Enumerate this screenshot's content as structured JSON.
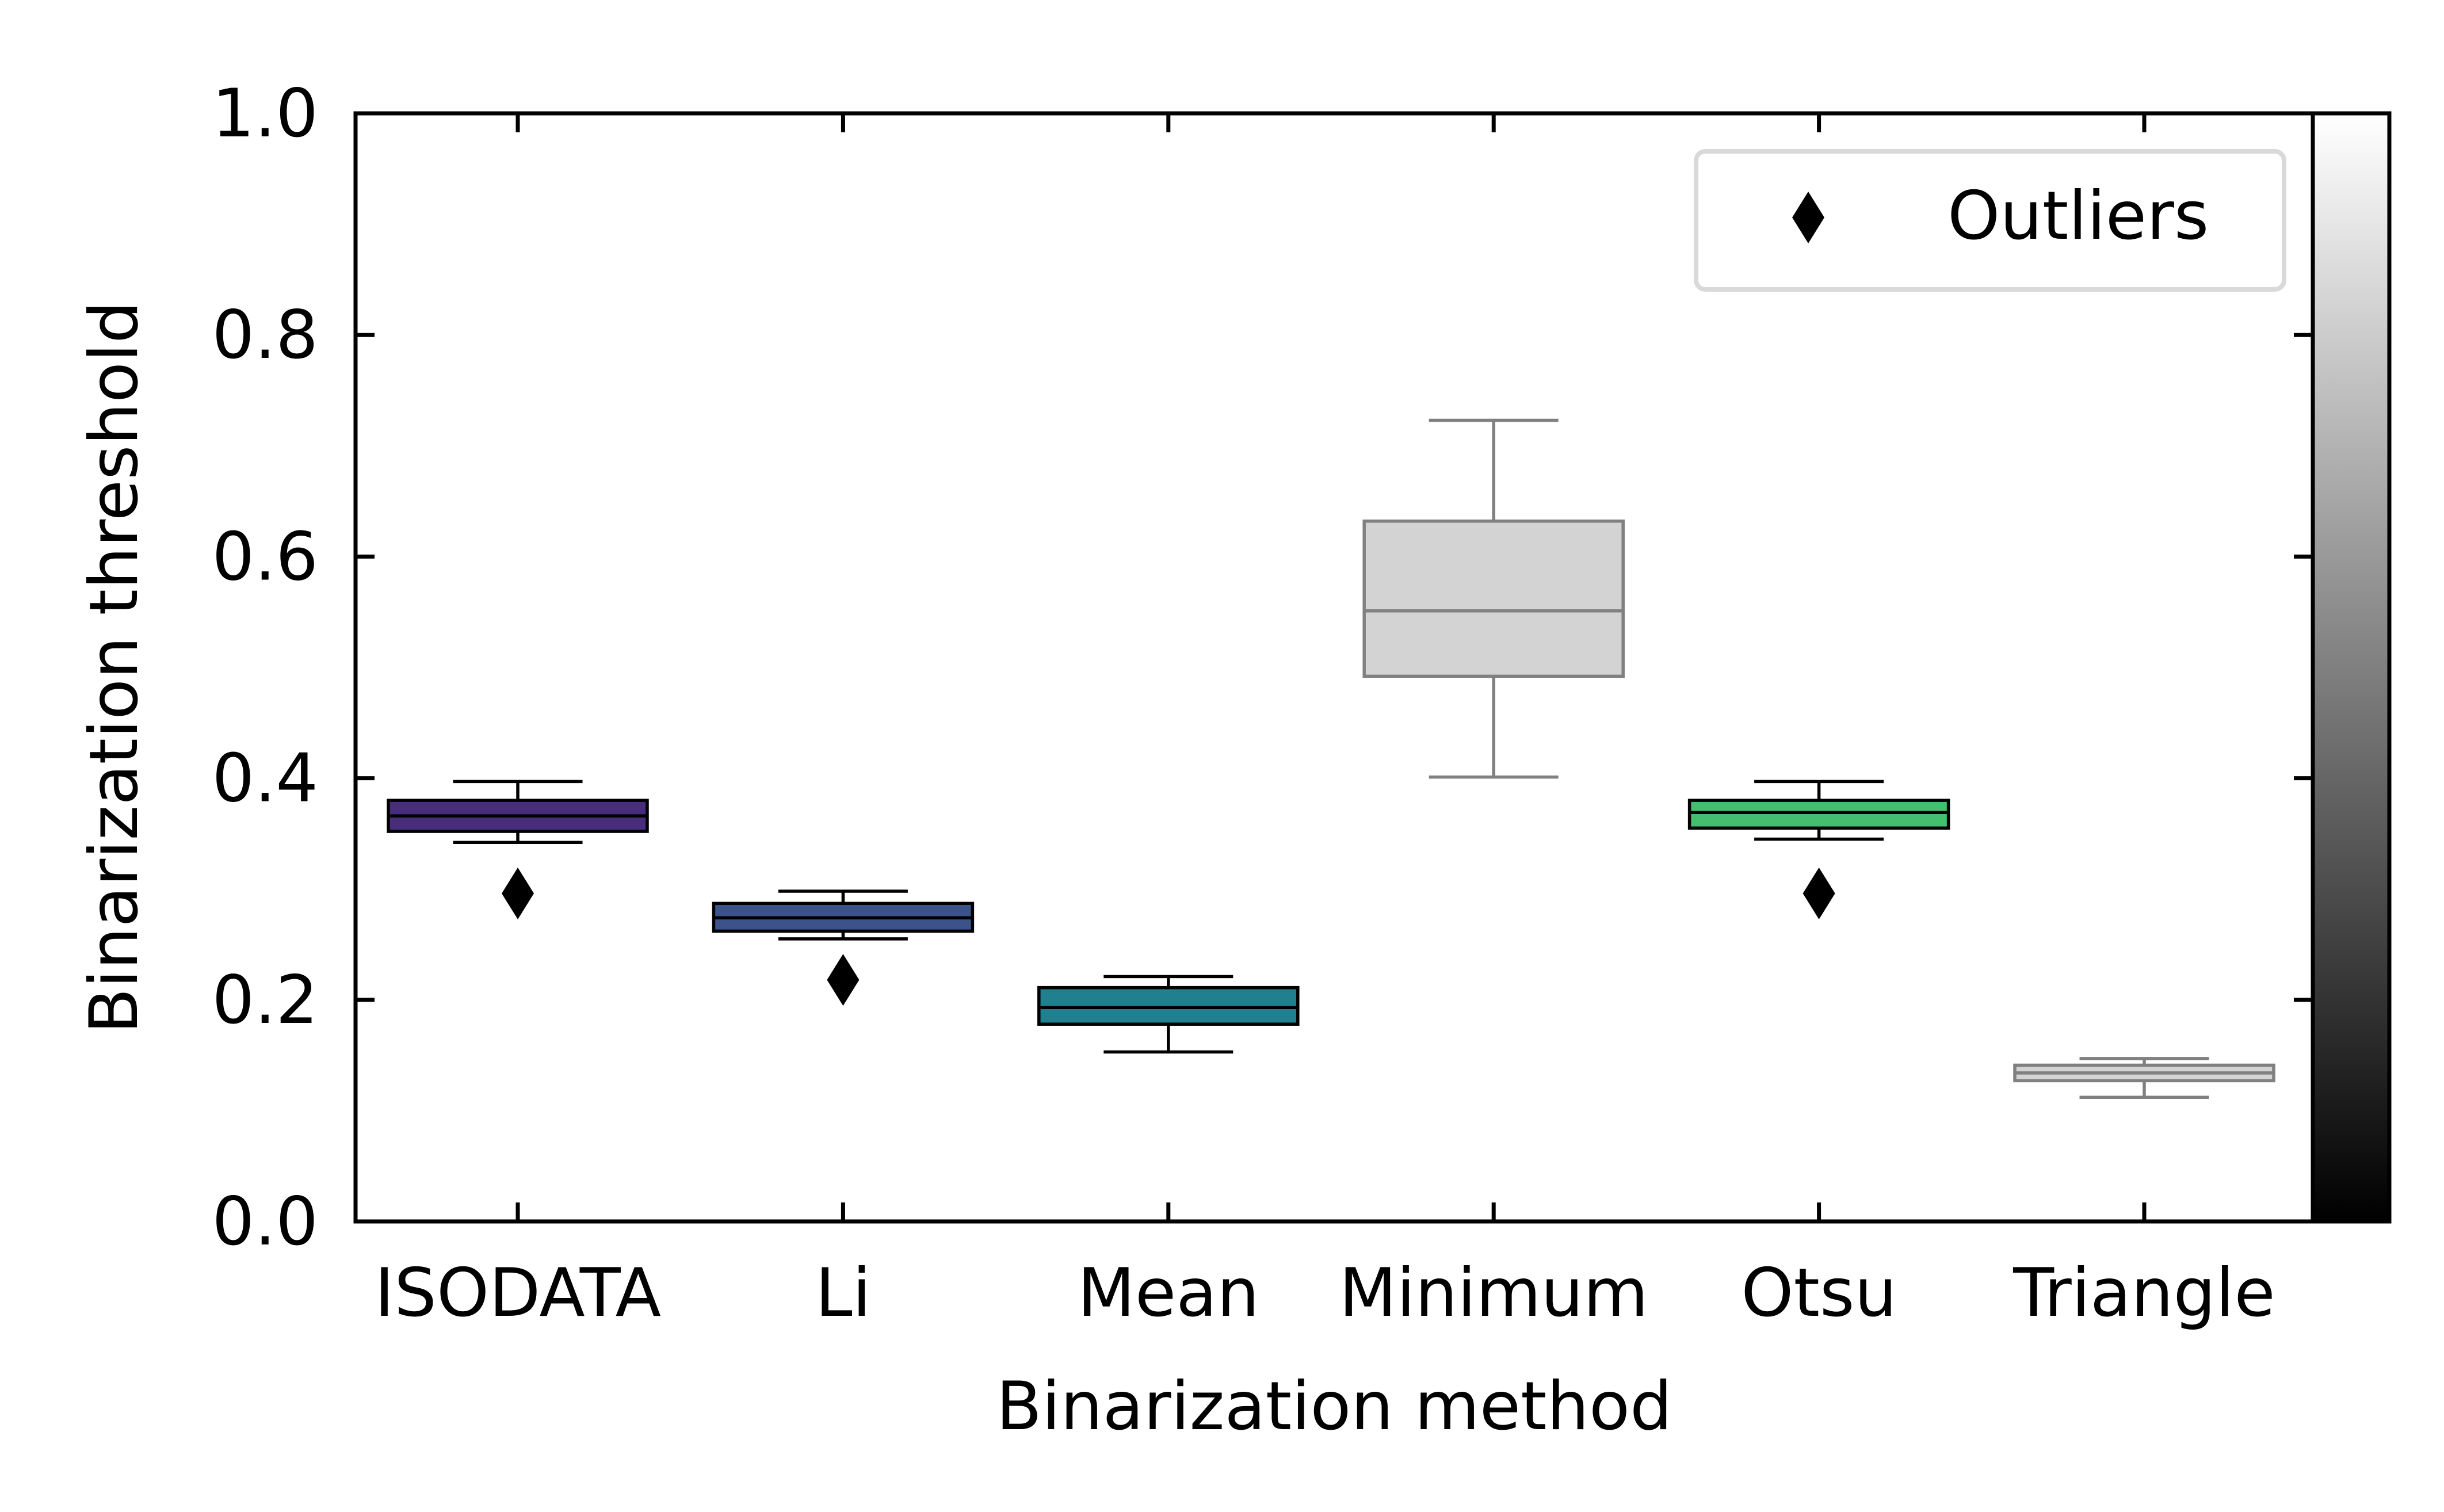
{
  "chart_data": {
    "type": "box",
    "xlabel": "Binarization method",
    "ylabel": "Binarization threshold",
    "ylim": [
      0.0,
      1.0
    ],
    "yticks": [
      "0.0",
      "0.2",
      "0.4",
      "0.6",
      "0.8",
      "1.0"
    ],
    "grid": false,
    "legend": {
      "position": "top-right",
      "entries": [
        {
          "label": "Outliers",
          "marker": "diamond",
          "color": "#000000"
        }
      ]
    },
    "colorbar": {
      "position": "right",
      "colormap": "grayscale",
      "from_color": "#000000",
      "to_color": "#ffffff"
    },
    "categories": [
      "ISODATA",
      "Li",
      "Mean",
      "Minimum",
      "Otsu",
      "Triangle"
    ],
    "category_label_colors": [
      "#000000",
      "#000000",
      "#000000",
      "#808080",
      "#000000",
      "#808080"
    ],
    "boxes": [
      {
        "category": "ISODATA",
        "whisker_low": 0.342,
        "q1": 0.352,
        "median": 0.366,
        "q3": 0.38,
        "whisker_high": 0.397,
        "outliers": [
          0.296
        ],
        "fill": "#472d7b",
        "edge": "#000000"
      },
      {
        "category": "Li",
        "whisker_low": 0.255,
        "q1": 0.262,
        "median": 0.274,
        "q3": 0.287,
        "whisker_high": 0.298,
        "outliers": [
          0.218
        ],
        "fill": "#3b528b",
        "edge": "#000000"
      },
      {
        "category": "Mean",
        "whisker_low": 0.153,
        "q1": 0.178,
        "median": 0.193,
        "q3": 0.211,
        "whisker_high": 0.221,
        "outliers": [],
        "fill": "#21808d",
        "edge": "#000000"
      },
      {
        "category": "Minimum",
        "whisker_low": 0.401,
        "q1": 0.492,
        "median": 0.551,
        "q3": 0.632,
        "whisker_high": 0.723,
        "outliers": [],
        "fill": "#d3d3d3",
        "edge": "#808080"
      },
      {
        "category": "Otsu",
        "whisker_low": 0.345,
        "q1": 0.355,
        "median": 0.369,
        "q3": 0.38,
        "whisker_high": 0.397,
        "outliers": [
          0.296
        ],
        "fill": "#44bf70",
        "edge": "#000000"
      },
      {
        "category": "Triangle",
        "whisker_low": 0.112,
        "q1": 0.127,
        "median": 0.134,
        "q3": 0.141,
        "whisker_high": 0.147,
        "outliers": [],
        "fill": "#d3d3d3",
        "edge": "#808080"
      }
    ]
  }
}
